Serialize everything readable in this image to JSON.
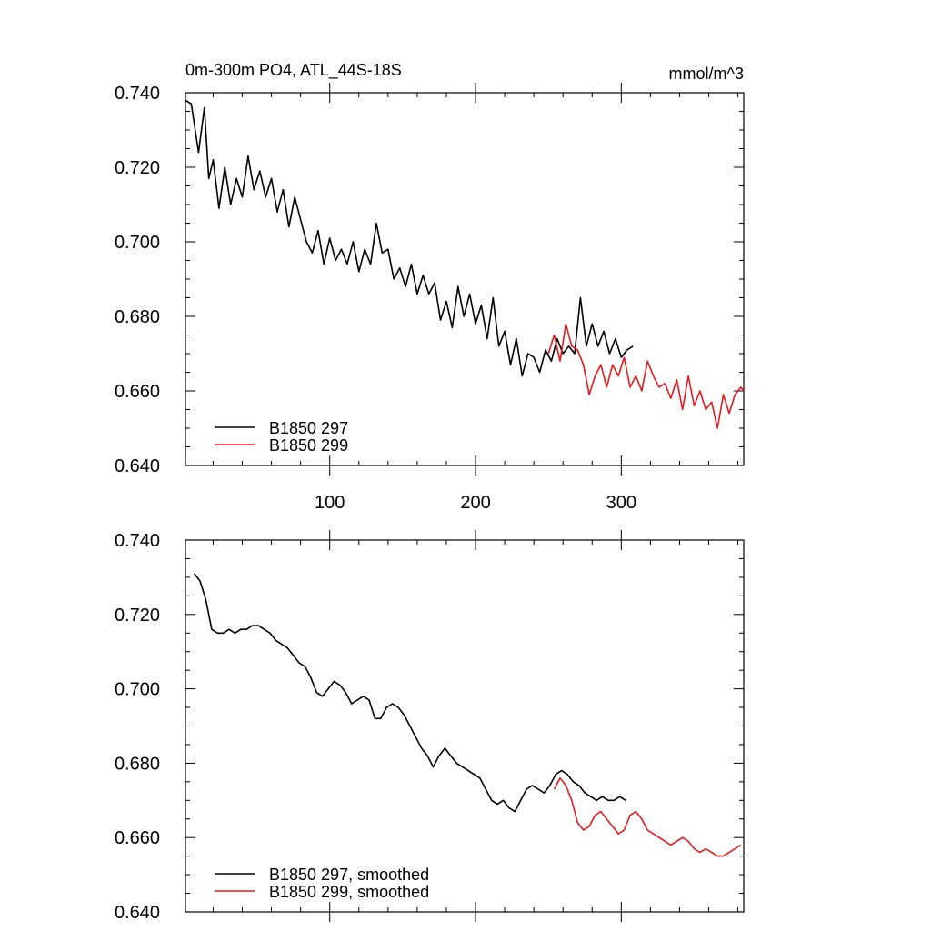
{
  "page": {
    "title": "0m-300m PO4, ATL_44S-18S",
    "units": "mmol/m^3"
  },
  "colors": {
    "series_1": "#000000",
    "series_2": "#e8191b"
  },
  "chart_data": [
    {
      "type": "line",
      "panel": "top",
      "title": "0m-300m PO4, ATL_44S-18S",
      "units_label": "mmol/m^3",
      "xlim": [
        1,
        384
      ],
      "ylim": [
        0.64,
        0.74
      ],
      "x_ticks": [
        100,
        200,
        300
      ],
      "x_tick_labels": [
        "100",
        "200",
        "300"
      ],
      "y_ticks": [
        0.64,
        0.66,
        0.68,
        0.7,
        0.72,
        0.74
      ],
      "y_tick_labels": [
        "0.640",
        "0.660",
        "0.680",
        "0.700",
        "0.720",
        "0.740"
      ],
      "legend_position": "bottom-left",
      "series": [
        {
          "name": "B1850 297",
          "color": "#000000",
          "x": [
            1,
            5,
            10,
            14,
            17,
            20,
            24,
            28,
            32,
            36,
            40,
            44,
            48,
            52,
            56,
            60,
            64,
            68,
            72,
            76,
            80,
            84,
            88,
            92,
            96,
            100,
            104,
            108,
            112,
            116,
            120,
            124,
            128,
            132,
            136,
            140,
            144,
            148,
            152,
            156,
            160,
            164,
            168,
            172,
            176,
            180,
            184,
            188,
            192,
            196,
            200,
            204,
            208,
            212,
            216,
            220,
            224,
            228,
            232,
            236,
            240,
            244,
            248,
            252,
            256,
            260,
            264,
            268,
            272,
            276,
            280,
            284,
            288,
            292,
            296,
            300,
            304,
            308
          ],
          "values": [
            0.738,
            0.737,
            0.724,
            0.736,
            0.717,
            0.722,
            0.709,
            0.72,
            0.71,
            0.717,
            0.712,
            0.723,
            0.714,
            0.719,
            0.712,
            0.717,
            0.708,
            0.714,
            0.704,
            0.712,
            0.706,
            0.7,
            0.697,
            0.703,
            0.694,
            0.701,
            0.695,
            0.698,
            0.694,
            0.7,
            0.692,
            0.698,
            0.694,
            0.705,
            0.697,
            0.698,
            0.69,
            0.693,
            0.688,
            0.694,
            0.686,
            0.691,
            0.686,
            0.689,
            0.679,
            0.684,
            0.677,
            0.688,
            0.68,
            0.686,
            0.678,
            0.683,
            0.674,
            0.685,
            0.672,
            0.676,
            0.667,
            0.674,
            0.664,
            0.67,
            0.669,
            0.665,
            0.671,
            0.668,
            0.674,
            0.67,
            0.672,
            0.67,
            0.685,
            0.672,
            0.678,
            0.672,
            0.676,
            0.67,
            0.674,
            0.669,
            0.671,
            0.672
          ]
        },
        {
          "name": "B1850 299",
          "color": "#e8191b",
          "x": [
            250,
            254,
            258,
            262,
            266,
            270,
            274,
            278,
            282,
            286,
            290,
            294,
            298,
            302,
            306,
            310,
            314,
            318,
            322,
            326,
            330,
            334,
            338,
            342,
            346,
            350,
            354,
            358,
            362,
            366,
            370,
            374,
            378,
            382,
            384
          ],
          "values": [
            0.67,
            0.675,
            0.668,
            0.678,
            0.672,
            0.671,
            0.667,
            0.659,
            0.664,
            0.667,
            0.661,
            0.667,
            0.664,
            0.669,
            0.661,
            0.664,
            0.66,
            0.668,
            0.664,
            0.661,
            0.662,
            0.658,
            0.663,
            0.655,
            0.664,
            0.656,
            0.66,
            0.655,
            0.657,
            0.65,
            0.659,
            0.654,
            0.659,
            0.661,
            0.66
          ]
        }
      ]
    },
    {
      "type": "line",
      "panel": "bottom",
      "title": "",
      "xlim": [
        1,
        384
      ],
      "ylim": [
        0.64,
        0.74
      ],
      "x_ticks": [
        100,
        200,
        300
      ],
      "y_ticks": [
        0.64,
        0.66,
        0.68,
        0.7,
        0.72,
        0.74
      ],
      "y_tick_labels": [
        "0.640",
        "0.660",
        "0.680",
        "0.700",
        "0.720",
        "0.740"
      ],
      "legend_position": "bottom-left",
      "series": [
        {
          "name": "B1850 297, smoothed",
          "color": "#000000",
          "x": [
            7,
            11,
            15,
            19,
            23,
            27,
            31,
            35,
            39,
            43,
            47,
            51,
            55,
            59,
            63,
            67,
            71,
            75,
            79,
            83,
            87,
            91,
            95,
            99,
            103,
            107,
            111,
            115,
            119,
            123,
            127,
            131,
            135,
            139,
            143,
            147,
            151,
            155,
            159,
            163,
            167,
            171,
            175,
            179,
            183,
            187,
            191,
            195,
            199,
            203,
            207,
            211,
            215,
            219,
            223,
            227,
            231,
            235,
            239,
            243,
            247,
            251,
            255,
            259,
            263,
            267,
            271,
            275,
            279,
            283,
            287,
            291,
            295,
            299,
            303
          ],
          "values": [
            0.731,
            0.729,
            0.724,
            0.716,
            0.715,
            0.715,
            0.716,
            0.715,
            0.716,
            0.716,
            0.717,
            0.717,
            0.716,
            0.715,
            0.713,
            0.712,
            0.711,
            0.709,
            0.707,
            0.706,
            0.703,
            0.699,
            0.698,
            0.7,
            0.702,
            0.701,
            0.699,
            0.696,
            0.697,
            0.698,
            0.697,
            0.692,
            0.692,
            0.695,
            0.696,
            0.695,
            0.693,
            0.69,
            0.687,
            0.684,
            0.682,
            0.679,
            0.682,
            0.684,
            0.682,
            0.68,
            0.679,
            0.678,
            0.677,
            0.676,
            0.673,
            0.67,
            0.669,
            0.67,
            0.668,
            0.667,
            0.67,
            0.673,
            0.674,
            0.673,
            0.672,
            0.674,
            0.677,
            0.678,
            0.677,
            0.675,
            0.674,
            0.672,
            0.671,
            0.67,
            0.671,
            0.67,
            0.67,
            0.671,
            0.67
          ]
        },
        {
          "name": "B1850 299, smoothed",
          "color": "#e8191b",
          "x": [
            254,
            258,
            262,
            266,
            270,
            274,
            278,
            282,
            286,
            290,
            294,
            298,
            302,
            306,
            310,
            314,
            318,
            322,
            326,
            330,
            334,
            338,
            342,
            346,
            350,
            354,
            358,
            362,
            366,
            370,
            374,
            378,
            382
          ],
          "values": [
            0.673,
            0.676,
            0.674,
            0.67,
            0.664,
            0.662,
            0.663,
            0.666,
            0.667,
            0.665,
            0.663,
            0.661,
            0.662,
            0.666,
            0.667,
            0.665,
            0.662,
            0.661,
            0.66,
            0.659,
            0.658,
            0.659,
            0.66,
            0.659,
            0.657,
            0.656,
            0.657,
            0.656,
            0.655,
            0.655,
            0.656,
            0.657,
            0.658
          ]
        }
      ]
    }
  ]
}
